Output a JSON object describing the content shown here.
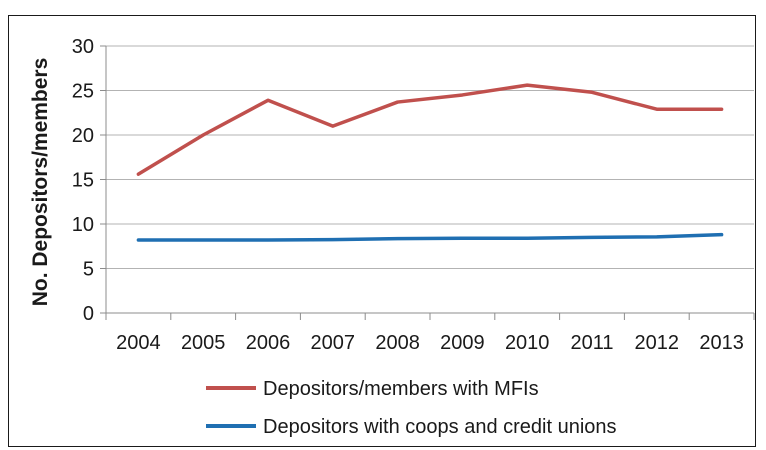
{
  "chart_data": {
    "type": "line",
    "title": "",
    "xlabel": "",
    "ylabel": "No. Depositors/members",
    "categories": [
      "2004",
      "2005",
      "2006",
      "2007",
      "2008",
      "2009",
      "2010",
      "2011",
      "2012",
      "2013"
    ],
    "ylim": [
      0,
      30
    ],
    "yticks": [
      0,
      5,
      10,
      15,
      20,
      25,
      30
    ],
    "grid": "horizontal",
    "legend_position": "bottom",
    "series": [
      {
        "name": "Depositors/members with MFIs",
        "color": "#c0504d",
        "values": [
          15.6,
          20.0,
          23.9,
          21.0,
          23.7,
          24.5,
          25.6,
          24.8,
          22.9,
          22.9
        ]
      },
      {
        "name": "Depositors with coops and credit unions",
        "color": "#1f6fb2",
        "values": [
          8.2,
          8.2,
          8.2,
          8.25,
          8.35,
          8.4,
          8.4,
          8.5,
          8.55,
          8.8
        ]
      }
    ]
  }
}
